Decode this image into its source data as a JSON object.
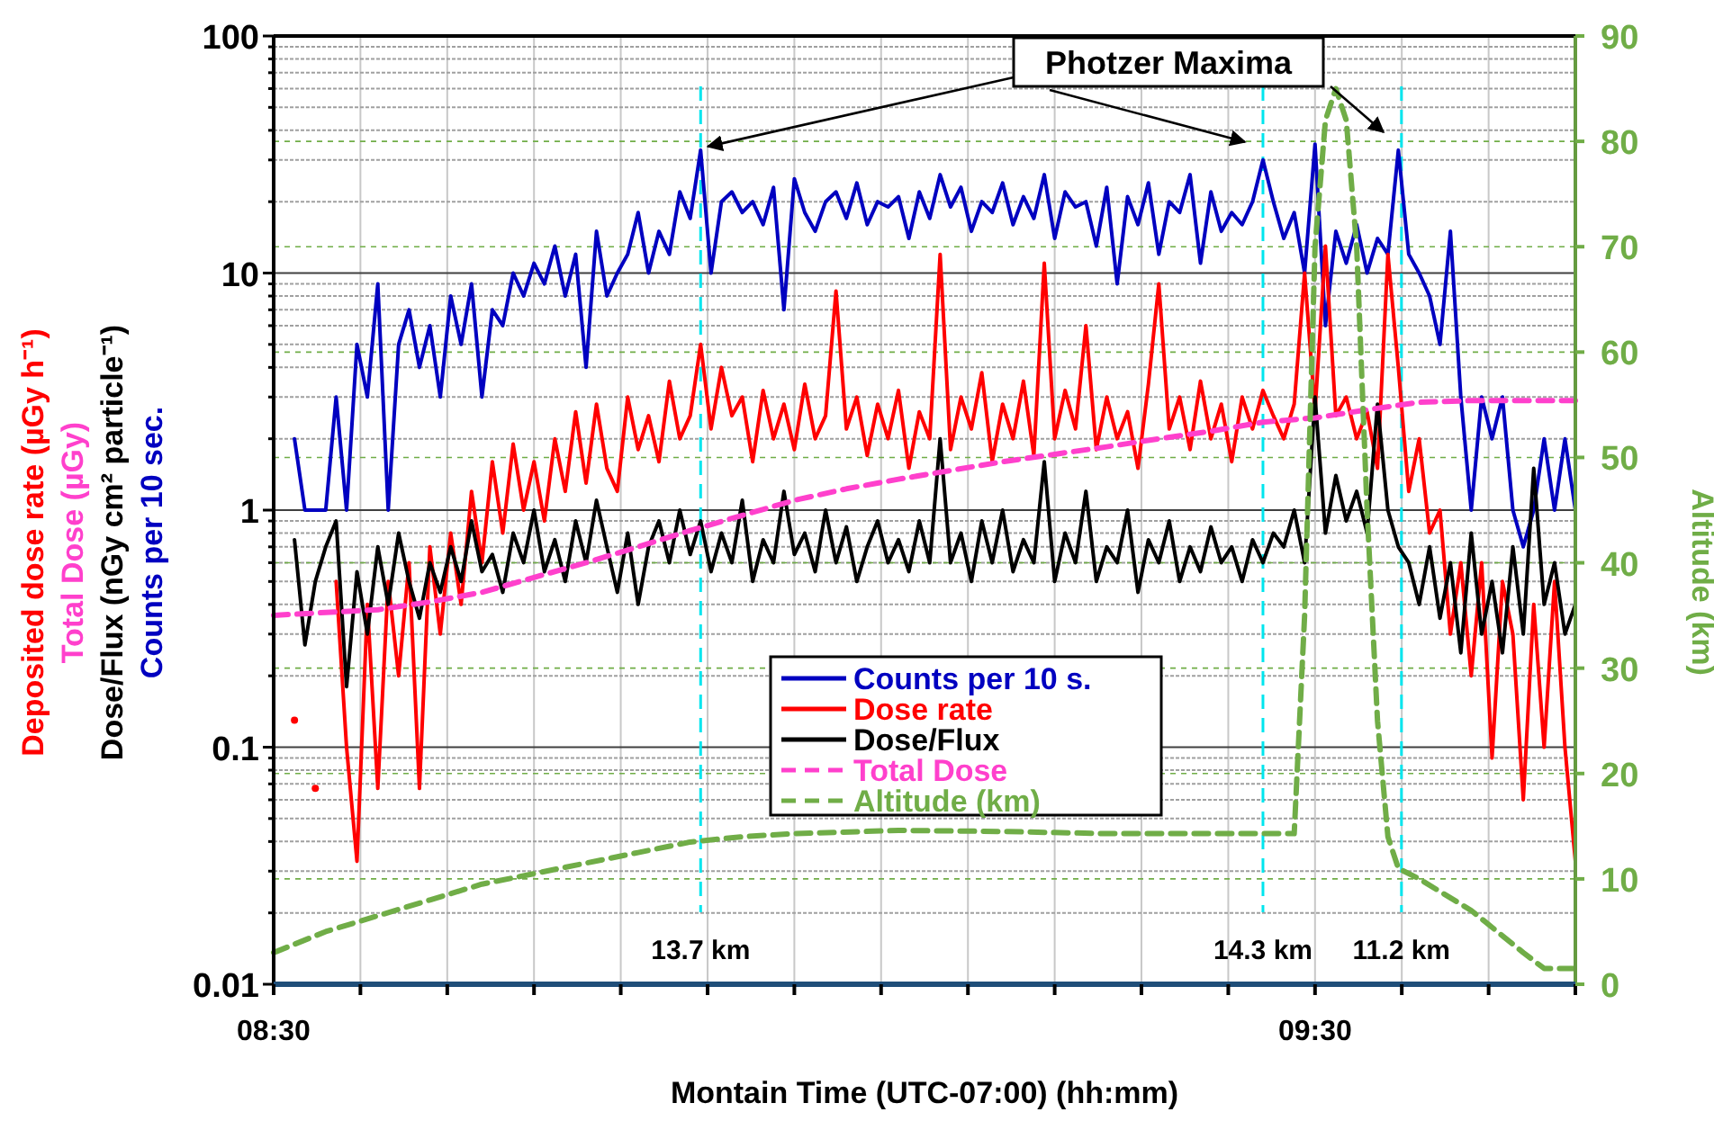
{
  "chart_data": {
    "type": "line",
    "xlabel": "Montain Time (UTC-07:00) (hh:mm)",
    "ylabel": "Deposited dose rate (µGy h⁻¹)\nTotal Dose (µGy)\nDose/Flux (nGy cm² particle⁻¹)\nCounts per 10 sec.",
    "y2label": "Altitude (km)",
    "log": "y",
    "grid": true,
    "legend": "center",
    "line_style": "solid",
    "xlim": [
      8.5,
      9.75
    ],
    "xticks": [
      {
        "value": 8.5,
        "label": "08:30"
      },
      {
        "value": 8.5833,
        "label": null
      },
      {
        "value": 8.6667,
        "label": null
      },
      {
        "value": 8.75,
        "label": null
      },
      {
        "value": 8.8333,
        "label": null
      },
      {
        "value": 8.9167,
        "label": null
      },
      {
        "value": 9.0,
        "label": null
      },
      {
        "value": 9.0833,
        "label": null
      },
      {
        "value": 9.1667,
        "label": null
      },
      {
        "value": 9.25,
        "label": null
      },
      {
        "value": 9.3333,
        "label": null
      },
      {
        "value": 9.4167,
        "label": null
      },
      {
        "value": 9.5,
        "label": "09:30"
      },
      {
        "value": 9.5833,
        "label": null
      },
      {
        "value": 9.6667,
        "label": null
      },
      {
        "value": 9.75,
        "label": null
      }
    ],
    "ylim": [
      0.01,
      100
    ],
    "yticks": [
      0.01,
      {
        "value": 0.02,
        "label": null
      },
      {
        "value": 0.03,
        "label": null
      },
      {
        "value": 0.04,
        "label": null
      },
      {
        "value": 0.05,
        "label": null
      },
      {
        "value": 0.06,
        "label": null
      },
      {
        "value": 0.07,
        "label": null
      },
      {
        "value": 0.08,
        "label": null
      },
      {
        "value": 0.09,
        "label": null
      },
      0.1,
      {
        "value": 0.2,
        "label": null
      },
      {
        "value": 0.3,
        "label": null
      },
      {
        "value": 0.4,
        "label": null
      },
      {
        "value": 0.5,
        "label": null
      },
      {
        "value": 0.6,
        "label": null
      },
      {
        "value": 0.7,
        "label": null
      },
      {
        "value": 0.8,
        "label": null
      },
      {
        "value": 0.9,
        "label": null
      },
      1,
      {
        "value": 2,
        "label": null
      },
      {
        "value": 3,
        "label": null
      },
      {
        "value": 4,
        "label": null
      },
      {
        "value": 5,
        "label": null
      },
      {
        "value": 6,
        "label": null
      },
      {
        "value": 7,
        "label": null
      },
      {
        "value": 8,
        "label": null
      },
      {
        "value": 9,
        "label": null
      },
      10,
      {
        "value": 20,
        "label": null
      },
      {
        "value": 30,
        "label": null
      },
      {
        "value": 40,
        "label": null
      },
      {
        "value": 50,
        "label": null
      },
      {
        "value": 60,
        "label": null
      },
      {
        "value": 70,
        "label": null
      },
      {
        "value": 80,
        "label": null
      },
      {
        "value": 90,
        "label": null
      },
      100
    ],
    "y2lim": [
      0,
      90
    ],
    "y2ticks": [
      0,
      10,
      20,
      30,
      40,
      50,
      60,
      70,
      80,
      90
    ],
    "x": [
      8.52,
      8.53,
      8.54,
      8.55,
      8.56,
      8.57,
      8.58,
      8.59,
      8.6,
      8.61,
      8.62,
      8.63,
      8.64,
      8.65,
      8.66,
      8.67,
      8.68,
      8.69,
      8.7,
      8.71,
      8.72,
      8.73,
      8.74,
      8.75,
      8.76,
      8.77,
      8.78,
      8.79,
      8.8,
      8.81,
      8.82,
      8.83,
      8.84,
      8.85,
      8.86,
      8.87,
      8.88,
      8.89,
      8.9,
      8.91,
      8.92,
      8.93,
      8.94,
      8.95,
      8.96,
      8.97,
      8.98,
      8.99,
      9.0,
      9.01,
      9.02,
      9.03,
      9.04,
      9.05,
      9.06,
      9.07,
      9.08,
      9.09,
      9.1,
      9.11,
      9.12,
      9.13,
      9.14,
      9.15,
      9.16,
      9.17,
      9.18,
      9.19,
      9.2,
      9.21,
      9.22,
      9.23,
      9.24,
      9.25,
      9.26,
      9.27,
      9.28,
      9.29,
      9.3,
      9.31,
      9.32,
      9.33,
      9.34,
      9.35,
      9.36,
      9.37,
      9.38,
      9.39,
      9.4,
      9.41,
      9.42,
      9.43,
      9.44,
      9.45,
      9.46,
      9.47,
      9.48,
      9.49,
      9.5,
      9.51,
      9.52,
      9.53,
      9.54,
      9.55,
      9.56,
      9.57,
      9.58,
      9.59,
      9.6,
      9.61,
      9.62,
      9.63,
      9.64,
      9.65,
      9.66,
      9.67,
      9.68,
      9.69,
      9.7,
      9.71,
      9.72,
      9.73,
      9.74,
      9.75
    ],
    "series": [
      {
        "name": "Counts per 10 s.",
        "color": "#0000c0",
        "values": [
          2,
          1,
          1,
          1,
          3,
          1,
          5,
          3,
          9,
          1,
          5,
          7,
          4,
          6,
          3,
          8,
          5,
          9,
          3,
          7,
          6,
          10,
          8,
          11,
          9,
          13,
          8,
          12,
          4,
          15,
          8,
          10,
          12,
          18,
          10,
          15,
          12,
          22,
          17,
          33,
          10,
          20,
          22,
          18,
          20,
          16,
          23,
          7,
          25,
          18,
          15,
          20,
          22,
          17,
          24,
          16,
          20,
          19,
          21,
          14,
          22,
          17,
          26,
          19,
          23,
          15,
          20,
          18,
          24,
          16,
          21,
          17,
          26,
          14,
          22,
          19,
          20,
          13,
          23,
          9,
          21,
          16,
          24,
          12,
          20,
          18,
          26,
          11,
          22,
          15,
          18,
          16,
          20,
          30,
          20,
          14,
          18,
          10,
          35,
          6,
          15,
          11,
          16,
          10,
          14,
          12,
          33,
          12,
          10,
          8,
          5,
          15,
          3,
          1,
          3,
          2,
          3,
          1,
          0.7,
          1,
          2,
          1,
          2,
          1
        ]
      },
      {
        "name": "Dose rate",
        "color": "#ff0000",
        "values": [
          0.13,
          null,
          0.067,
          null,
          0.5,
          0.1,
          0.033,
          0.4,
          0.067,
          0.5,
          0.2,
          0.6,
          0.067,
          0.7,
          0.3,
          0.8,
          0.4,
          1.2,
          0.6,
          1.6,
          0.8,
          1.9,
          1.0,
          1.6,
          0.9,
          2.0,
          1.2,
          2.6,
          1.3,
          2.8,
          1.5,
          1.2,
          3.0,
          1.8,
          2.5,
          1.6,
          3.5,
          2.0,
          2.5,
          5.0,
          2.2,
          4.0,
          2.5,
          3.0,
          1.6,
          3.2,
          2.0,
          2.8,
          1.8,
          3.4,
          2.0,
          2.5,
          8.4,
          2.2,
          3.0,
          1.7,
          2.8,
          2.0,
          3.2,
          1.5,
          2.6,
          2.0,
          12,
          1.8,
          3.0,
          2.2,
          3.8,
          1.6,
          2.8,
          2.0,
          3.5,
          1.7,
          11,
          2.0,
          3.2,
          2.2,
          6.0,
          1.8,
          3.0,
          2.0,
          2.6,
          1.5,
          3.4,
          9.0,
          2.2,
          3.0,
          1.8,
          3.5,
          2.0,
          2.8,
          1.6,
          3.0,
          2.2,
          3.2,
          2.5,
          2.0,
          2.8,
          10,
          2.6,
          13,
          2.5,
          3.0,
          2.0,
          2.6,
          1.5,
          12,
          4.0,
          1.2,
          2.0,
          0.8,
          1.0,
          0.3,
          0.6,
          0.2,
          0.6,
          0.09,
          0.5,
          0.3,
          0.06,
          0.4,
          0.1,
          0.5,
          0.1,
          0.033
        ]
      },
      {
        "name": "Dose/Flux",
        "color": "#000000",
        "values": [
          0.75,
          0.27,
          0.5,
          0.7,
          0.9,
          0.18,
          0.55,
          0.3,
          0.7,
          0.4,
          0.8,
          0.5,
          0.35,
          0.6,
          0.45,
          0.7,
          0.5,
          0.9,
          0.55,
          0.65,
          0.45,
          0.8,
          0.6,
          1.0,
          0.55,
          0.75,
          0.5,
          0.9,
          0.6,
          1.1,
          0.7,
          0.45,
          0.8,
          0.4,
          0.7,
          0.9,
          0.6,
          1.0,
          0.65,
          0.9,
          0.55,
          0.8,
          0.6,
          1.1,
          0.5,
          0.75,
          0.6,
          1.2,
          0.65,
          0.8,
          0.55,
          1.0,
          0.6,
          0.85,
          0.5,
          0.7,
          0.9,
          0.6,
          0.75,
          0.55,
          0.9,
          0.6,
          2.0,
          0.6,
          0.8,
          0.5,
          0.9,
          0.6,
          1.0,
          0.55,
          0.75,
          0.6,
          1.6,
          0.5,
          0.8,
          0.6,
          1.2,
          0.5,
          0.7,
          0.6,
          1.0,
          0.45,
          0.75,
          0.6,
          0.9,
          0.5,
          0.7,
          0.55,
          0.85,
          0.6,
          0.7,
          0.5,
          0.75,
          0.6,
          0.8,
          0.7,
          1.0,
          0.6,
          3.0,
          0.8,
          1.4,
          0.9,
          1.2,
          0.8,
          2.8,
          1.0,
          0.7,
          0.6,
          0.4,
          0.7,
          0.35,
          0.6,
          0.25,
          0.8,
          0.3,
          0.5,
          0.25,
          0.7,
          0.3,
          1.5,
          0.4,
          0.6,
          0.3,
          0.4
        ]
      },
      {
        "name": "Total Dose",
        "color": "#ff40cc",
        "line_style": "dashed",
        "x": [
          8.5,
          8.55,
          8.6,
          8.65,
          8.7,
          8.75,
          8.8,
          8.85,
          8.9,
          8.95,
          9.0,
          9.05,
          9.1,
          9.15,
          9.2,
          9.25,
          9.3,
          9.35,
          9.4,
          9.45,
          9.5,
          9.55,
          9.6,
          9.65,
          9.75
        ],
        "values": [
          0.36,
          0.37,
          0.38,
          0.41,
          0.45,
          0.52,
          0.6,
          0.7,
          0.82,
          0.95,
          1.1,
          1.23,
          1.35,
          1.47,
          1.6,
          1.72,
          1.85,
          2.0,
          2.15,
          2.35,
          2.45,
          2.65,
          2.85,
          2.9,
          2.9
        ]
      },
      {
        "name": "Altitude  (km)",
        "color": "#70ad47",
        "line_style": "dashed",
        "axis": "y2",
        "x": [
          8.5,
          8.55,
          8.6,
          8.65,
          8.7,
          8.75,
          8.8,
          8.85,
          8.9,
          8.95,
          9.0,
          9.1,
          9.2,
          9.3,
          9.45,
          9.48,
          9.49,
          9.5,
          9.51,
          9.52,
          9.53,
          9.54,
          9.55,
          9.56,
          9.57,
          9.58,
          9.6,
          9.65,
          9.7,
          9.72,
          9.75
        ],
        "values": [
          3,
          5,
          6.5,
          8,
          9.5,
          10.5,
          11.5,
          12.5,
          13.5,
          14,
          14.3,
          14.6,
          14.5,
          14.3,
          14.3,
          14.3,
          35,
          70,
          82,
          85,
          82,
          70,
          45,
          25,
          14,
          11,
          10,
          7,
          3,
          1.5,
          1.5
        ]
      }
    ],
    "ref_lines": [
      {
        "axis": "x",
        "value": 8.91,
        "label": "13.7 km",
        "color": "#00e5ee",
        "line_style": "dashed"
      },
      {
        "axis": "x",
        "value": 9.45,
        "label": "14.3 km",
        "color": "#00e5ee",
        "line_style": "dashed"
      },
      {
        "axis": "x",
        "value": 9.583,
        "label": "11.2 km",
        "color": "#00e5ee",
        "line_style": "dashed"
      }
    ],
    "annotations": [
      {
        "text": "Photzer Maxima",
        "x": 8.91,
        "y": 33
      }
    ]
  }
}
